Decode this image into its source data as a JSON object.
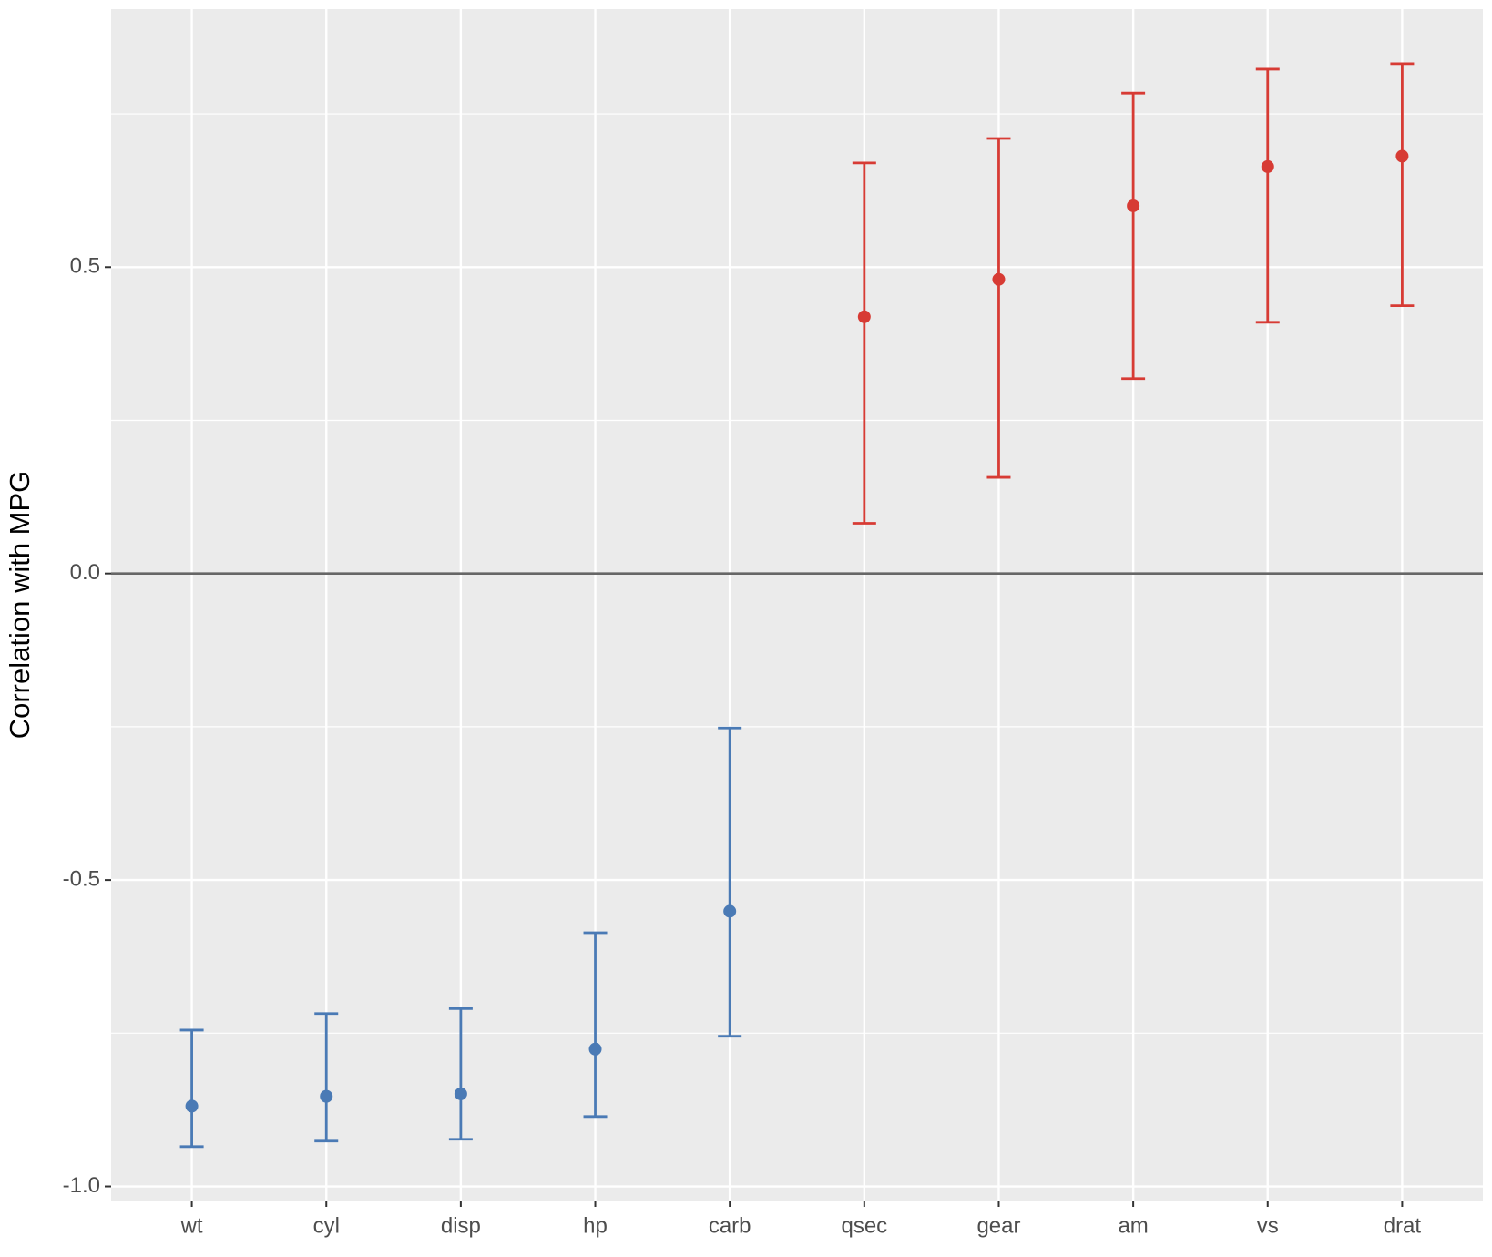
{
  "chart_data": {
    "type": "errorbar",
    "ylabel": "Correlation with MPG",
    "categories": [
      "wt",
      "cyl",
      "disp",
      "hp",
      "carb",
      "qsec",
      "gear",
      "am",
      "vs",
      "drat"
    ],
    "values": [
      -0.869,
      -0.853,
      -0.849,
      -0.776,
      -0.551,
      0.419,
      0.48,
      0.6,
      0.664,
      0.681
    ],
    "lower": [
      -0.935,
      -0.926,
      -0.923,
      -0.886,
      -0.755,
      0.082,
      0.157,
      0.318,
      0.41,
      0.437
    ],
    "upper": [
      -0.745,
      -0.718,
      -0.71,
      -0.586,
      -0.252,
      0.67,
      0.71,
      0.784,
      0.823,
      0.832
    ],
    "colors": {
      "negative": "#4a7ab5",
      "positive": "#d73b34"
    },
    "ylim": [
      -1.023,
      0.921
    ],
    "yticks": [
      {
        "value": -1,
        "label": "-1.0"
      },
      {
        "value": -0.5,
        "label": "-0.5"
      },
      {
        "value": 0,
        "label": "0.0"
      },
      {
        "value": 0.5,
        "label": "0.5"
      }
    ],
    "minor_yticks": [
      -0.75,
      -0.25,
      0.25,
      0.75
    ],
    "hline": 0,
    "grid": true
  }
}
